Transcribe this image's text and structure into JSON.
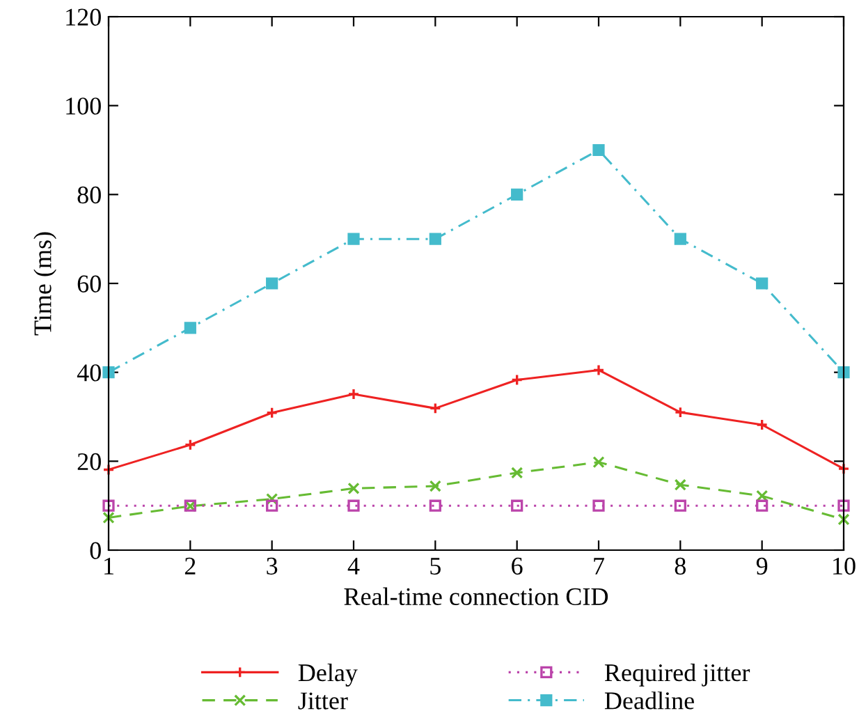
{
  "chart_data": {
    "type": "line",
    "xlabel": "Real-time connection CID",
    "ylabel": "Time (ms)",
    "x": [
      1,
      2,
      3,
      4,
      5,
      6,
      7,
      8,
      9,
      10
    ],
    "xlim": [
      1,
      10
    ],
    "xticks": [
      1,
      2,
      3,
      4,
      5,
      6,
      7,
      8,
      9,
      10
    ],
    "ylim": [
      0,
      120
    ],
    "yticks": [
      0,
      20,
      40,
      60,
      80,
      100,
      120
    ],
    "grid": false,
    "legend": "bottom",
    "series": [
      {
        "name": "Delay",
        "color": "#ee2222",
        "line_style": "solid",
        "marker": "plus",
        "values": [
          18.1,
          23.7,
          30.9,
          35.1,
          31.9,
          38.3,
          40.5,
          31,
          28.2,
          18.3
        ]
      },
      {
        "name": "Jitter",
        "color": "#66bb33",
        "line_style": "dashed",
        "marker": "cross",
        "values": [
          7.3,
          9.9,
          11.5,
          13.9,
          14.4,
          17.4,
          19.8,
          14.7,
          12.2,
          6.9
        ]
      },
      {
        "name": "Required jitter",
        "color": "#bb44aa",
        "line_style": "dotted",
        "marker": "square-open",
        "values": [
          10,
          10,
          10,
          10,
          10,
          10,
          10,
          10,
          10,
          10
        ]
      },
      {
        "name": "Deadline",
        "color": "#44bbcc",
        "line_style": "dashdot",
        "marker": "square",
        "values": [
          40,
          50,
          60,
          70,
          70,
          80,
          90,
          70,
          60,
          40
        ]
      }
    ]
  }
}
